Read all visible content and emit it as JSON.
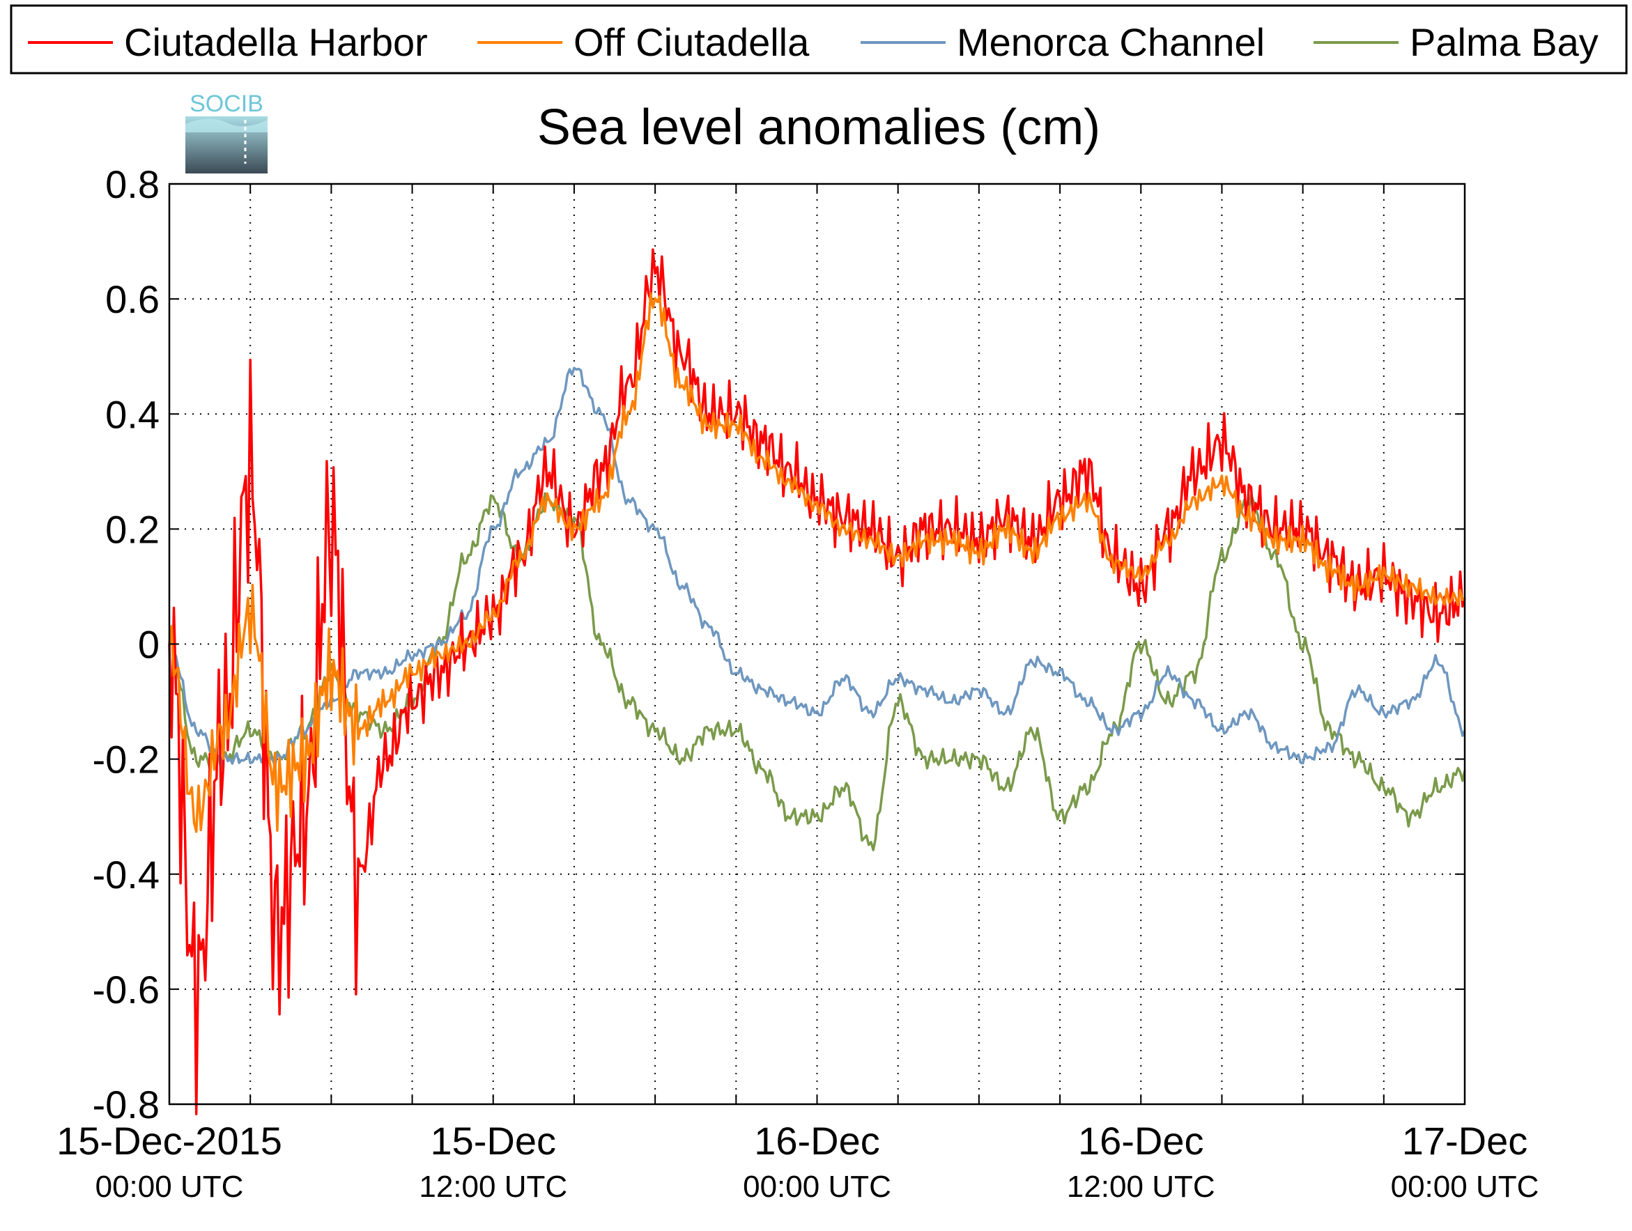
{
  "logo": {
    "text": "SOCIB",
    "text_color": "#6ec6d8",
    "top_color": "#a9dce4",
    "bottom_color": "#3b4a55"
  },
  "chart_data": {
    "type": "line",
    "title": "Sea level anomalies (cm)",
    "xlabel": "",
    "ylabel": "",
    "ylim": [
      -0.8,
      0.8
    ],
    "xlim": [
      "2015-12-15T00:00",
      "2015-12-17T00:00"
    ],
    "grid": true,
    "legend_position": "top",
    "y_ticks": [
      "0.8",
      "0.6",
      "0.4",
      "0.2",
      "0",
      "-0.2",
      "-0.4",
      "-0.6",
      "-0.8"
    ],
    "x_ticks": [
      {
        "date": "15-Dec-2015",
        "time": "00:00 UTC"
      },
      {
        "date": "15-Dec",
        "time": "12:00 UTC"
      },
      {
        "date": "16-Dec",
        "time": "00:00 UTC"
      },
      {
        "date": "16-Dec",
        "time": "12:00 UTC"
      },
      {
        "date": "17-Dec",
        "time": "00:00 UTC"
      }
    ],
    "series": [
      {
        "name": "Ciutadella Harbor",
        "color": "#ff0000",
        "x": [
          "2015-12-15T00:00",
          "2015-12-15T01:00",
          "2015-12-15T02:00",
          "2015-12-15T03:00",
          "2015-12-15T04:00",
          "2015-12-15T05:00",
          "2015-12-15T06:00",
          "2015-12-15T07:00",
          "2015-12-15T08:00",
          "2015-12-15T09:00",
          "2015-12-15T10:00",
          "2015-12-15T11:00",
          "2015-12-15T12:00",
          "2015-12-15T13:00",
          "2015-12-15T14:00",
          "2015-12-15T15:00",
          "2015-12-15T16:00",
          "2015-12-15T17:00",
          "2015-12-15T18:00",
          "2015-12-15T19:00",
          "2015-12-15T20:00",
          "2015-12-15T21:00",
          "2015-12-15T22:00",
          "2015-12-15T23:00",
          "2015-12-16T00:00",
          "2015-12-16T01:00",
          "2015-12-16T02:00",
          "2015-12-16T03:00",
          "2015-12-16T04:00",
          "2015-12-16T05:00",
          "2015-12-16T06:00",
          "2015-12-16T07:00",
          "2015-12-16T08:00",
          "2015-12-16T09:00",
          "2015-12-16T10:00",
          "2015-12-16T11:00",
          "2015-12-16T12:00",
          "2015-12-16T13:00",
          "2015-12-16T14:00",
          "2015-12-16T15:00",
          "2015-12-16T16:00",
          "2015-12-16T17:00",
          "2015-12-16T18:00",
          "2015-12-16T19:00",
          "2015-12-16T20:00",
          "2015-12-16T21:00",
          "2015-12-16T22:00",
          "2015-12-16T23:00",
          "2015-12-17T00:00"
        ],
        "values": [
          0.0,
          -0.6,
          -0.15,
          0.3,
          -0.5,
          -0.3,
          0.2,
          -0.4,
          -0.2,
          -0.1,
          -0.05,
          0.0,
          0.05,
          0.15,
          0.3,
          0.2,
          0.3,
          0.45,
          0.65,
          0.5,
          0.4,
          0.4,
          0.35,
          0.3,
          0.25,
          0.22,
          0.2,
          0.15,
          0.2,
          0.2,
          0.18,
          0.22,
          0.18,
          0.25,
          0.3,
          0.15,
          0.1,
          0.2,
          0.3,
          0.35,
          0.25,
          0.2,
          0.2,
          0.15,
          0.1,
          0.12,
          0.08,
          0.05,
          0.08
        ]
      },
      {
        "name": "Off Ciutadella",
        "color": "#ff8000",
        "x": [
          "2015-12-15T00:00",
          "2015-12-15T01:00",
          "2015-12-15T02:00",
          "2015-12-15T03:00",
          "2015-12-15T04:00",
          "2015-12-15T05:00",
          "2015-12-15T06:00",
          "2015-12-15T07:00",
          "2015-12-15T08:00",
          "2015-12-15T09:00",
          "2015-12-15T10:00",
          "2015-12-15T11:00",
          "2015-12-15T12:00",
          "2015-12-15T13:00",
          "2015-12-15T14:00",
          "2015-12-15T15:00",
          "2015-12-15T16:00",
          "2015-12-15T17:00",
          "2015-12-15T18:00",
          "2015-12-15T19:00",
          "2015-12-15T20:00",
          "2015-12-15T21:00",
          "2015-12-15T22:00",
          "2015-12-15T23:00",
          "2015-12-16T00:00",
          "2015-12-16T01:00",
          "2015-12-16T02:00",
          "2015-12-16T03:00",
          "2015-12-16T04:00",
          "2015-12-16T05:00",
          "2015-12-16T06:00",
          "2015-12-16T07:00",
          "2015-12-16T08:00",
          "2015-12-16T09:00",
          "2015-12-16T10:00",
          "2015-12-16T11:00",
          "2015-12-16T12:00",
          "2015-12-16T13:00",
          "2015-12-16T14:00",
          "2015-12-16T15:00",
          "2015-12-16T16:00",
          "2015-12-16T17:00",
          "2015-12-16T18:00",
          "2015-12-16T19:00",
          "2015-12-16T20:00",
          "2015-12-16T21:00",
          "2015-12-16T22:00",
          "2015-12-16T23:00",
          "2015-12-17T00:00"
        ],
        "values": [
          0.0,
          -0.3,
          -0.15,
          0.05,
          -0.25,
          -0.2,
          -0.05,
          -0.15,
          -0.1,
          -0.05,
          -0.02,
          0.0,
          0.05,
          0.15,
          0.25,
          0.2,
          0.25,
          0.4,
          0.6,
          0.45,
          0.38,
          0.38,
          0.32,
          0.28,
          0.24,
          0.2,
          0.18,
          0.15,
          0.18,
          0.18,
          0.16,
          0.2,
          0.16,
          0.22,
          0.25,
          0.14,
          0.12,
          0.18,
          0.25,
          0.28,
          0.22,
          0.18,
          0.18,
          0.13,
          0.1,
          0.12,
          0.1,
          0.08,
          0.08
        ]
      },
      {
        "name": "Menorca Channel",
        "color": "#6e97bf",
        "x": [
          "2015-12-15T00:00",
          "2015-12-15T01:00",
          "2015-12-15T02:00",
          "2015-12-15T03:00",
          "2015-12-15T04:00",
          "2015-12-15T05:00",
          "2015-12-15T06:00",
          "2015-12-15T07:00",
          "2015-12-15T08:00",
          "2015-12-15T09:00",
          "2015-12-15T10:00",
          "2015-12-15T11:00",
          "2015-12-15T12:00",
          "2015-12-15T13:00",
          "2015-12-15T14:00",
          "2015-12-15T15:00",
          "2015-12-15T16:00",
          "2015-12-15T17:00",
          "2015-12-15T18:00",
          "2015-12-15T19:00",
          "2015-12-15T20:00",
          "2015-12-15T21:00",
          "2015-12-15T22:00",
          "2015-12-15T23:00",
          "2015-12-16T00:00",
          "2015-12-16T01:00",
          "2015-12-16T02:00",
          "2015-12-16T03:00",
          "2015-12-16T04:00",
          "2015-12-16T05:00",
          "2015-12-16T06:00",
          "2015-12-16T07:00",
          "2015-12-16T08:00",
          "2015-12-16T09:00",
          "2015-12-16T10:00",
          "2015-12-16T11:00",
          "2015-12-16T12:00",
          "2015-12-16T13:00",
          "2015-12-16T14:00",
          "2015-12-16T15:00",
          "2015-12-16T16:00",
          "2015-12-16T17:00",
          "2015-12-16T18:00",
          "2015-12-16T19:00",
          "2015-12-16T20:00",
          "2015-12-16T21:00",
          "2015-12-16T22:00",
          "2015-12-16T23:00",
          "2015-12-17T00:00"
        ],
        "values": [
          0.0,
          -0.15,
          -0.2,
          -0.2,
          -0.2,
          -0.15,
          -0.1,
          -0.05,
          -0.05,
          -0.02,
          0.0,
          0.05,
          0.2,
          0.3,
          0.35,
          0.48,
          0.4,
          0.25,
          0.2,
          0.1,
          0.03,
          -0.05,
          -0.08,
          -0.1,
          -0.12,
          -0.06,
          -0.12,
          -0.06,
          -0.08,
          -0.1,
          -0.08,
          -0.12,
          -0.03,
          -0.05,
          -0.1,
          -0.15,
          -0.12,
          -0.05,
          -0.1,
          -0.15,
          -0.12,
          -0.18,
          -0.2,
          -0.18,
          -0.08,
          -0.12,
          -0.1,
          -0.03,
          -0.15
        ]
      },
      {
        "name": "Palma Bay",
        "color": "#7a9a4a",
        "x": [
          "2015-12-15T00:00",
          "2015-12-15T01:00",
          "2015-12-15T02:00",
          "2015-12-15T03:00",
          "2015-12-15T04:00",
          "2015-12-15T05:00",
          "2015-12-15T06:00",
          "2015-12-15T07:00",
          "2015-12-15T08:00",
          "2015-12-15T09:00",
          "2015-12-15T10:00",
          "2015-12-15T11:00",
          "2015-12-15T12:00",
          "2015-12-15T13:00",
          "2015-12-15T14:00",
          "2015-12-15T15:00",
          "2015-12-15T16:00",
          "2015-12-15T17:00",
          "2015-12-15T18:00",
          "2015-12-15T19:00",
          "2015-12-15T20:00",
          "2015-12-15T21:00",
          "2015-12-15T22:00",
          "2015-12-15T23:00",
          "2015-12-16T00:00",
          "2015-12-16T01:00",
          "2015-12-16T02:00",
          "2015-12-16T03:00",
          "2015-12-16T04:00",
          "2015-12-16T05:00",
          "2015-12-16T06:00",
          "2015-12-16T07:00",
          "2015-12-16T08:00",
          "2015-12-16T09:00",
          "2015-12-16T10:00",
          "2015-12-16T11:00",
          "2015-12-16T12:00",
          "2015-12-16T13:00",
          "2015-12-16T14:00",
          "2015-12-16T15:00",
          "2015-12-16T16:00",
          "2015-12-16T17:00",
          "2015-12-16T18:00",
          "2015-12-16T19:00",
          "2015-12-16T20:00",
          "2015-12-16T21:00",
          "2015-12-16T22:00",
          "2015-12-16T23:00",
          "2015-12-17T00:00"
        ],
        "values": [
          0.0,
          -0.2,
          -0.2,
          -0.15,
          -0.2,
          -0.15,
          -0.05,
          -0.12,
          -0.15,
          -0.1,
          0.0,
          0.15,
          0.25,
          0.15,
          0.25,
          0.22,
          0.0,
          -0.1,
          -0.15,
          -0.2,
          -0.15,
          -0.15,
          -0.22,
          -0.3,
          -0.3,
          -0.25,
          -0.35,
          -0.1,
          -0.2,
          -0.2,
          -0.2,
          -0.25,
          -0.15,
          -0.3,
          -0.25,
          -0.15,
          0.0,
          -0.1,
          -0.05,
          0.15,
          0.25,
          0.15,
          0.0,
          -0.15,
          -0.2,
          -0.25,
          -0.3,
          -0.25,
          -0.22
        ]
      }
    ]
  }
}
